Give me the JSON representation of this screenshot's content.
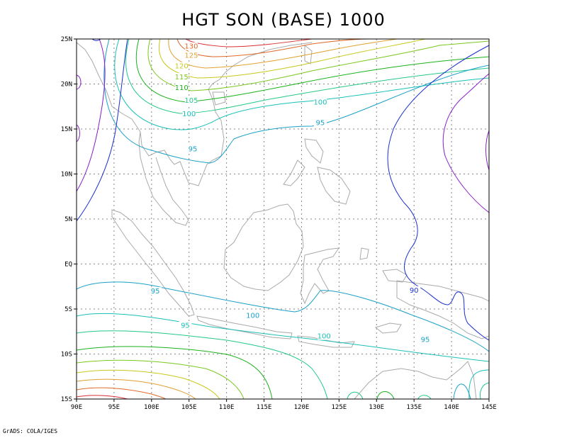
{
  "title": "HGT SON (BASE) 1000",
  "credit": "GrADS: COLA/IGES",
  "map": {
    "projection": "lat-lon",
    "lon_range": [
      90,
      145
    ],
    "lat_range": [
      -15,
      25
    ],
    "grid": true,
    "x_ticks": [
      "90E",
      "95E",
      "100E",
      "105E",
      "110E",
      "115E",
      "120E",
      "125E",
      "130E",
      "135E",
      "140E",
      "145E"
    ],
    "y_ticks": [
      "25N",
      "20N",
      "15N",
      "10N",
      "5N",
      "EQ",
      "5S",
      "10S",
      "15S"
    ],
    "contour_levels": [
      90,
      95,
      100,
      105,
      110,
      115,
      120,
      125,
      130
    ],
    "contour_labels": [
      "130",
      "125",
      "120",
      "115",
      "110",
      "105",
      "100",
      "95",
      "100",
      "95",
      "95",
      "100",
      "95",
      "100",
      "95",
      "90"
    ]
  },
  "colors": {
    "c90": "#1a2fd0",
    "c95": "#1aa0c8",
    "c100": "#18c0b8",
    "c105": "#22c888",
    "c110": "#19b21a",
    "c115": "#7ac81c",
    "c120": "#c8c81c",
    "c125": "#e0a030",
    "c130": "#e06a28",
    "c135": "#d83030",
    "purple": "#8a1ec8",
    "coast": "#aaaaaa",
    "grid": "#888888"
  }
}
